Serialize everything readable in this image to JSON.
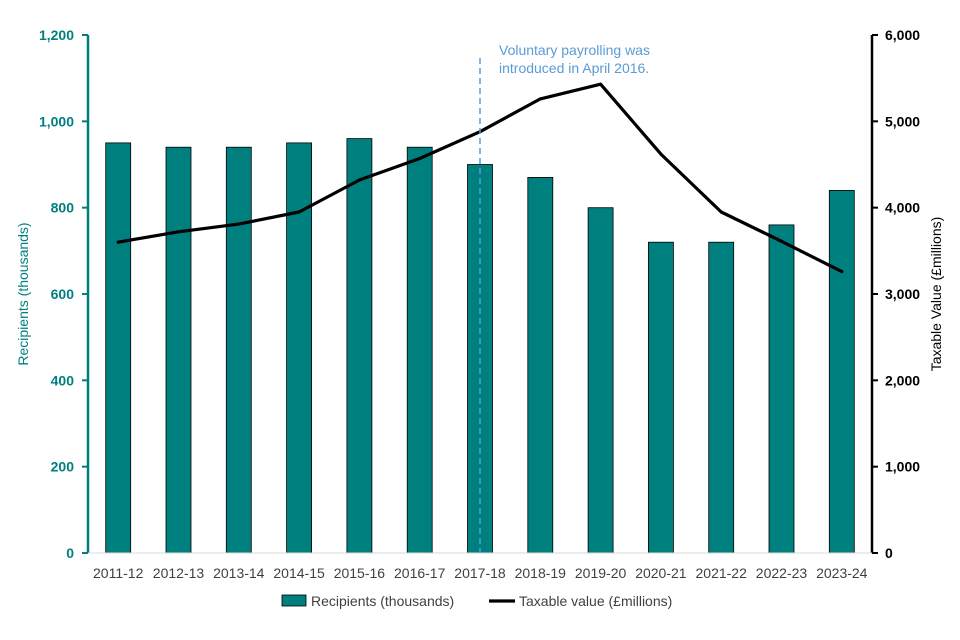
{
  "chart_data": {
    "type": "bar",
    "categories": [
      "2011-12",
      "2012-13",
      "2013-14",
      "2014-15",
      "2015-16",
      "2016-17",
      "2017-18",
      "2018-19",
      "2019-20",
      "2020-21",
      "2021-22",
      "2022-23",
      "2023-24"
    ],
    "series": [
      {
        "name": "Recipients (thousands)",
        "type": "bar",
        "axis": "left",
        "values": [
          950,
          940,
          940,
          950,
          960,
          940,
          900,
          870,
          800,
          720,
          720,
          760,
          840
        ]
      },
      {
        "name": "Taxable value (£millions)",
        "type": "line",
        "axis": "right",
        "values": [
          3600,
          3720,
          3810,
          3950,
          4320,
          4570,
          4880,
          5260,
          5430,
          4620,
          3950,
          3610,
          3260
        ]
      }
    ],
    "ylabel": "Recipients (thousands)",
    "y2label": "Taxable Value (£millions)",
    "ylim": [
      0,
      1200
    ],
    "y2lim": [
      0,
      6000
    ],
    "yticks": [
      "0",
      "200",
      "400",
      "600",
      "800",
      "1,000",
      "1,200"
    ],
    "y2ticks": [
      "0",
      "1,000",
      "2,000",
      "3,000",
      "4,000",
      "5,000",
      "6,000"
    ],
    "legend_position": "bottom",
    "grid": false,
    "annotation": {
      "lines": [
        "Voluntary payrolling was",
        "introduced in April 2016."
      ],
      "category": "2017-18"
    },
    "colors": {
      "bar": "#007F7F",
      "line": "#000000",
      "left_axis": "#007F7F",
      "right_axis": "#000000",
      "annotation": "#5B9BD5"
    }
  }
}
